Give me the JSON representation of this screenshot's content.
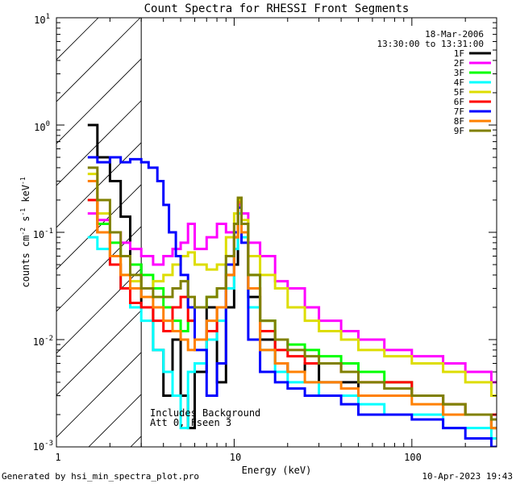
{
  "chart_data": {
    "type": "line",
    "title": "Count Spectra for RHESSI Front Segments",
    "xlabel": "Energy (keV)",
    "ylabel": "counts cm",
    "ylabel_parts": {
      "base": "counts cm",
      "exp1": "-2",
      "mid": " s",
      "exp2": "-1",
      "mid2": " keV",
      "exp3": "-1"
    },
    "xscale": "log",
    "yscale": "log",
    "xlim": [
      1,
      300
    ],
    "ylim": [
      0.001,
      10
    ],
    "x_ticks": [
      "1",
      "10",
      "100"
    ],
    "y_ticks": [
      {
        "base": "10",
        "exp": "1",
        "value": 10
      },
      {
        "base": "10",
        "exp": "0",
        "value": 1
      },
      {
        "base": "10",
        "exp": "-1",
        "value": 0.1
      },
      {
        "base": "10",
        "exp": "-2",
        "value": 0.01
      },
      {
        "base": "10",
        "exp": "-3",
        "value": 0.001
      }
    ],
    "date_label": "18-Mar-2006",
    "time_label": "13:30:00 to 13:31:00",
    "annotation_lines": [
      "Includes Background",
      "Att 0, Fseen 3"
    ],
    "footer_left": "Generated by hsi_min_spectra_plot.pro",
    "footer_right": "10-Apr-2023 19:43",
    "shaded_region": {
      "x_from": 1,
      "x_to": 3,
      "style": "diagonal-hatch"
    },
    "legend_position": "top-right",
    "series": [
      {
        "name": "1F",
        "color": "#000000",
        "points": [
          [
            1.5,
            1.0
          ],
          [
            1.7,
            0.5
          ],
          [
            2.0,
            0.3
          ],
          [
            2.3,
            0.14
          ],
          [
            2.6,
            0.05
          ],
          [
            3.0,
            0.02
          ],
          [
            3.5,
            0.008
          ],
          [
            4.0,
            0.003
          ],
          [
            4.5,
            0.01
          ],
          [
            5.0,
            0.003
          ],
          [
            5.5,
            0.0015
          ],
          [
            6.0,
            0.005
          ],
          [
            7.0,
            0.02
          ],
          [
            8.0,
            0.004
          ],
          [
            9.0,
            0.02
          ],
          [
            10.0,
            0.05
          ],
          [
            10.5,
            0.18
          ],
          [
            11.0,
            0.1
          ],
          [
            12.0,
            0.025
          ],
          [
            14.0,
            0.01
          ],
          [
            17.0,
            0.006
          ],
          [
            20.0,
            0.005
          ],
          [
            25.0,
            0.006
          ],
          [
            30.0,
            0.004
          ],
          [
            40.0,
            0.004
          ],
          [
            50.0,
            0.003
          ],
          [
            70.0,
            0.003
          ],
          [
            100.0,
            0.003
          ],
          [
            150.0,
            0.002
          ],
          [
            200.0,
            0.002
          ],
          [
            280.0,
            0.0015
          ]
        ]
      },
      {
        "name": "2F",
        "color": "#ff00ff",
        "points": [
          [
            1.5,
            0.15
          ],
          [
            1.7,
            0.13
          ],
          [
            2.0,
            0.1
          ],
          [
            2.3,
            0.08
          ],
          [
            2.6,
            0.07
          ],
          [
            3.0,
            0.06
          ],
          [
            3.5,
            0.05
          ],
          [
            4.0,
            0.06
          ],
          [
            4.5,
            0.07
          ],
          [
            5.0,
            0.08
          ],
          [
            5.5,
            0.12
          ],
          [
            6.0,
            0.07
          ],
          [
            7.0,
            0.09
          ],
          [
            8.0,
            0.12
          ],
          [
            9.0,
            0.1
          ],
          [
            10.0,
            0.12
          ],
          [
            10.5,
            0.18
          ],
          [
            11.0,
            0.15
          ],
          [
            12.0,
            0.08
          ],
          [
            14.0,
            0.06
          ],
          [
            17.0,
            0.035
          ],
          [
            20.0,
            0.03
          ],
          [
            25.0,
            0.02
          ],
          [
            30.0,
            0.015
          ],
          [
            40.0,
            0.012
          ],
          [
            50.0,
            0.01
          ],
          [
            70.0,
            0.008
          ],
          [
            100.0,
            0.007
          ],
          [
            150.0,
            0.006
          ],
          [
            200.0,
            0.005
          ],
          [
            280.0,
            0.004
          ]
        ]
      },
      {
        "name": "3F",
        "color": "#00ff00",
        "points": [
          [
            1.5,
            0.2
          ],
          [
            1.7,
            0.12
          ],
          [
            2.0,
            0.08
          ],
          [
            2.3,
            0.06
          ],
          [
            2.6,
            0.05
          ],
          [
            3.0,
            0.04
          ],
          [
            3.5,
            0.03
          ],
          [
            4.0,
            0.02
          ],
          [
            4.5,
            0.015
          ],
          [
            5.0,
            0.012
          ],
          [
            5.5,
            0.015
          ],
          [
            6.0,
            0.02
          ],
          [
            7.0,
            0.025
          ],
          [
            8.0,
            0.03
          ],
          [
            9.0,
            0.05
          ],
          [
            10.0,
            0.1
          ],
          [
            10.5,
            0.2
          ],
          [
            11.0,
            0.12
          ],
          [
            12.0,
            0.04
          ],
          [
            14.0,
            0.015
          ],
          [
            17.0,
            0.01
          ],
          [
            20.0,
            0.009
          ],
          [
            25.0,
            0.008
          ],
          [
            30.0,
            0.007
          ],
          [
            40.0,
            0.006
          ],
          [
            50.0,
            0.005
          ],
          [
            70.0,
            0.004
          ],
          [
            100.0,
            0.003
          ],
          [
            150.0,
            0.0025
          ],
          [
            200.0,
            0.002
          ],
          [
            280.0,
            0.0015
          ]
        ]
      },
      {
        "name": "4F",
        "color": "#00ffff",
        "points": [
          [
            1.5,
            0.09
          ],
          [
            1.7,
            0.07
          ],
          [
            2.0,
            0.05
          ],
          [
            2.3,
            0.03
          ],
          [
            2.6,
            0.02
          ],
          [
            3.0,
            0.015
          ],
          [
            3.5,
            0.008
          ],
          [
            4.0,
            0.005
          ],
          [
            4.5,
            0.003
          ],
          [
            5.0,
            0.0015
          ],
          [
            5.5,
            0.005
          ],
          [
            6.0,
            0.006
          ],
          [
            7.0,
            0.01
          ],
          [
            8.0,
            0.015
          ],
          [
            9.0,
            0.03
          ],
          [
            10.0,
            0.07
          ],
          [
            10.5,
            0.15
          ],
          [
            11.0,
            0.09
          ],
          [
            12.0,
            0.02
          ],
          [
            14.0,
            0.008
          ],
          [
            17.0,
            0.005
          ],
          [
            20.0,
            0.004
          ],
          [
            25.0,
            0.004
          ],
          [
            30.0,
            0.003
          ],
          [
            40.0,
            0.003
          ],
          [
            50.0,
            0.0025
          ],
          [
            70.0,
            0.002
          ],
          [
            100.0,
            0.002
          ],
          [
            150.0,
            0.0015
          ],
          [
            200.0,
            0.0015
          ],
          [
            280.0,
            0.0012
          ]
        ]
      },
      {
        "name": "5F",
        "color": "#dddd00",
        "points": [
          [
            1.5,
            0.35
          ],
          [
            1.7,
            0.15
          ],
          [
            2.0,
            0.06
          ],
          [
            2.3,
            0.04
          ],
          [
            2.6,
            0.035
          ],
          [
            3.0,
            0.03
          ],
          [
            3.5,
            0.035
          ],
          [
            4.0,
            0.04
          ],
          [
            4.5,
            0.05
          ],
          [
            5.0,
            0.06
          ],
          [
            5.5,
            0.065
          ],
          [
            6.0,
            0.05
          ],
          [
            7.0,
            0.045
          ],
          [
            8.0,
            0.05
          ],
          [
            9.0,
            0.09
          ],
          [
            10.0,
            0.15
          ],
          [
            10.5,
            0.2
          ],
          [
            11.0,
            0.13
          ],
          [
            12.0,
            0.06
          ],
          [
            14.0,
            0.04
          ],
          [
            17.0,
            0.03
          ],
          [
            20.0,
            0.02
          ],
          [
            25.0,
            0.015
          ],
          [
            30.0,
            0.012
          ],
          [
            40.0,
            0.01
          ],
          [
            50.0,
            0.008
          ],
          [
            70.0,
            0.007
          ],
          [
            100.0,
            0.006
          ],
          [
            150.0,
            0.005
          ],
          [
            200.0,
            0.004
          ],
          [
            280.0,
            0.003
          ]
        ]
      },
      {
        "name": "6F",
        "color": "#ff0000",
        "points": [
          [
            1.5,
            0.2
          ],
          [
            1.7,
            0.1
          ],
          [
            2.0,
            0.05
          ],
          [
            2.3,
            0.03
          ],
          [
            2.6,
            0.022
          ],
          [
            3.0,
            0.02
          ],
          [
            3.5,
            0.015
          ],
          [
            4.0,
            0.012
          ],
          [
            4.5,
            0.02
          ],
          [
            5.0,
            0.025
          ],
          [
            5.5,
            0.015
          ],
          [
            6.0,
            0.01
          ],
          [
            7.0,
            0.012
          ],
          [
            8.0,
            0.02
          ],
          [
            9.0,
            0.04
          ],
          [
            10.0,
            0.09
          ],
          [
            10.5,
            0.19
          ],
          [
            11.0,
            0.1
          ],
          [
            12.0,
            0.03
          ],
          [
            14.0,
            0.012
          ],
          [
            17.0,
            0.008
          ],
          [
            20.0,
            0.007
          ],
          [
            25.0,
            0.006
          ],
          [
            30.0,
            0.006
          ],
          [
            40.0,
            0.005
          ],
          [
            50.0,
            0.004
          ],
          [
            70.0,
            0.004
          ],
          [
            100.0,
            0.003
          ],
          [
            150.0,
            0.0025
          ],
          [
            200.0,
            0.002
          ],
          [
            280.0,
            0.002
          ]
        ]
      },
      {
        "name": "7F",
        "color": "#0000ff",
        "points": [
          [
            1.5,
            0.5
          ],
          [
            1.7,
            0.45
          ],
          [
            2.0,
            0.5
          ],
          [
            2.3,
            0.45
          ],
          [
            2.6,
            0.48
          ],
          [
            3.0,
            0.45
          ],
          [
            3.3,
            0.4
          ],
          [
            3.7,
            0.3
          ],
          [
            4.0,
            0.18
          ],
          [
            4.3,
            0.1
          ],
          [
            4.7,
            0.06
          ],
          [
            5.0,
            0.04
          ],
          [
            5.5,
            0.02
          ],
          [
            6.0,
            0.008
          ],
          [
            7.0,
            0.003
          ],
          [
            8.0,
            0.006
          ],
          [
            9.0,
            0.05
          ],
          [
            10.0,
            0.1
          ],
          [
            10.5,
            0.17
          ],
          [
            11.0,
            0.08
          ],
          [
            12.0,
            0.01
          ],
          [
            14.0,
            0.005
          ],
          [
            17.0,
            0.004
          ],
          [
            20.0,
            0.0035
          ],
          [
            25.0,
            0.003
          ],
          [
            30.0,
            0.003
          ],
          [
            40.0,
            0.0025
          ],
          [
            50.0,
            0.002
          ],
          [
            70.0,
            0.002
          ],
          [
            100.0,
            0.0018
          ],
          [
            150.0,
            0.0015
          ],
          [
            200.0,
            0.0012
          ],
          [
            280.0,
            0.001
          ]
        ]
      },
      {
        "name": "8F",
        "color": "#ff8000",
        "points": [
          [
            1.5,
            0.3
          ],
          [
            1.7,
            0.1
          ],
          [
            2.0,
            0.06
          ],
          [
            2.3,
            0.04
          ],
          [
            2.6,
            0.03
          ],
          [
            3.0,
            0.025
          ],
          [
            3.5,
            0.02
          ],
          [
            4.0,
            0.015
          ],
          [
            4.5,
            0.012
          ],
          [
            5.0,
            0.01
          ],
          [
            5.5,
            0.008
          ],
          [
            6.0,
            0.01
          ],
          [
            7.0,
            0.015
          ],
          [
            8.0,
            0.02
          ],
          [
            9.0,
            0.04
          ],
          [
            10.0,
            0.09
          ],
          [
            10.5,
            0.19
          ],
          [
            11.0,
            0.1
          ],
          [
            12.0,
            0.03
          ],
          [
            14.0,
            0.008
          ],
          [
            17.0,
            0.006
          ],
          [
            20.0,
            0.005
          ],
          [
            25.0,
            0.004
          ],
          [
            30.0,
            0.004
          ],
          [
            40.0,
            0.0035
          ],
          [
            50.0,
            0.003
          ],
          [
            70.0,
            0.003
          ],
          [
            100.0,
            0.0025
          ],
          [
            150.0,
            0.002
          ],
          [
            200.0,
            0.002
          ],
          [
            280.0,
            0.0015
          ]
        ]
      },
      {
        "name": "9F",
        "color": "#808000",
        "points": [
          [
            1.5,
            0.4
          ],
          [
            1.7,
            0.2
          ],
          [
            2.0,
            0.1
          ],
          [
            2.3,
            0.06
          ],
          [
            2.6,
            0.04
          ],
          [
            3.0,
            0.03
          ],
          [
            3.5,
            0.025
          ],
          [
            4.0,
            0.025
          ],
          [
            4.5,
            0.03
          ],
          [
            5.0,
            0.035
          ],
          [
            5.5,
            0.025
          ],
          [
            6.0,
            0.02
          ],
          [
            7.0,
            0.025
          ],
          [
            8.0,
            0.03
          ],
          [
            9.0,
            0.06
          ],
          [
            10.0,
            0.12
          ],
          [
            10.5,
            0.21
          ],
          [
            11.0,
            0.12
          ],
          [
            12.0,
            0.04
          ],
          [
            14.0,
            0.015
          ],
          [
            17.0,
            0.01
          ],
          [
            20.0,
            0.008
          ],
          [
            25.0,
            0.007
          ],
          [
            30.0,
            0.006
          ],
          [
            40.0,
            0.005
          ],
          [
            50.0,
            0.004
          ],
          [
            70.0,
            0.0035
          ],
          [
            100.0,
            0.003
          ],
          [
            150.0,
            0.0025
          ],
          [
            200.0,
            0.002
          ],
          [
            280.0,
            0.0018
          ]
        ]
      }
    ]
  }
}
